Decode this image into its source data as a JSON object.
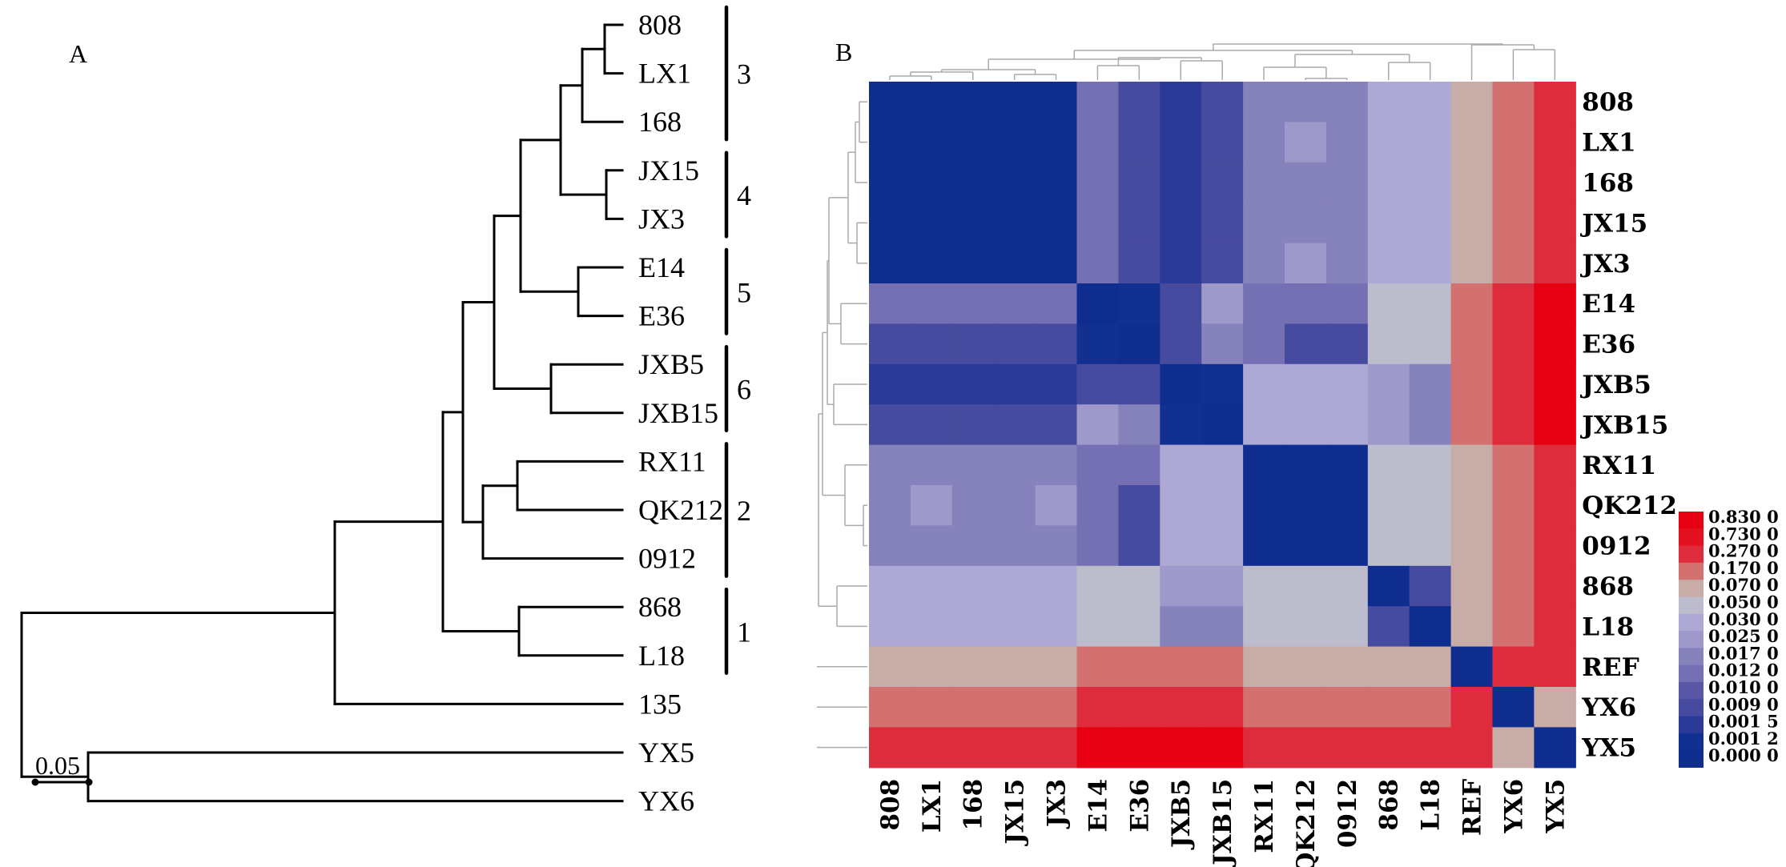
{
  "panel_a": {
    "label": "A",
    "taxa": [
      "808",
      "LX1",
      "168",
      "JX15",
      "JX3",
      "E14",
      "E36",
      "JXB5",
      "JXB15",
      "RX11",
      "QK212",
      "0912",
      "868",
      "L18",
      "135",
      "YX5",
      "YX6"
    ],
    "scale_bar": {
      "label": "0.05",
      "value": 0.05
    },
    "clusters": [
      {
        "label": "3",
        "members": [
          "808",
          "LX1",
          "168"
        ]
      },
      {
        "label": "4",
        "members": [
          "JX15",
          "JX3"
        ]
      },
      {
        "label": "5",
        "members": [
          "E14",
          "E36"
        ]
      },
      {
        "label": "6",
        "members": [
          "JXB5",
          "JXB15"
        ]
      },
      {
        "label": "2",
        "members": [
          "RX11",
          "QK212",
          "0912"
        ]
      },
      {
        "label": "1",
        "members": [
          "868",
          "L18"
        ]
      }
    ],
    "newick": "((((((((808,LX1),168),(JX15,JX3)),(E14,E36)),(JXB5,JXB15)),((RX11,QK212),0912)),(868,L18)),135),(YX5,YX6));"
  },
  "panel_b": {
    "label": "B",
    "labels": [
      "808",
      "LX1",
      "168",
      "JX15",
      "JX3",
      "E14",
      "E36",
      "JXB5",
      "JXB15",
      "RX11",
      "QK212",
      "0912",
      "868",
      "L18",
      "REF",
      "YX6",
      "YX5"
    ],
    "legend": {
      "labels": [
        "0.830 0",
        "0.730 0",
        "0.270 0",
        "0.170 0",
        "0.070 0",
        "0.050 0",
        "0.030 0",
        "0.025 0",
        "0.017 0",
        "0.012 0",
        "0.010 0",
        "0.009 0",
        "0.001 5",
        "0.001 2",
        "0.000 0"
      ],
      "colors": [
        "#e60012",
        "#e3101f",
        "#de2c3c",
        "#d37070",
        "#c8aca8",
        "#bdbccd",
        "#aea9d4",
        "#9e98cb",
        "#8682bc",
        "#7470b3",
        "#5856a5",
        "#474b9f",
        "#2b3a96",
        "#12308f",
        "#0f2d8f"
      ]
    }
  },
  "chart_data": {
    "type": "heatmap",
    "title": "",
    "rows": [
      "808",
      "LX1",
      "168",
      "JX15",
      "JX3",
      "E14",
      "E36",
      "JXB5",
      "JXB15",
      "RX11",
      "QK212",
      "0912",
      "868",
      "L18",
      "REF",
      "YX6",
      "YX5"
    ],
    "columns": [
      "808",
      "LX1",
      "168",
      "JX15",
      "JX3",
      "E14",
      "E36",
      "JXB5",
      "JXB15",
      "RX11",
      "QK212",
      "0912",
      "868",
      "L18",
      "REF",
      "YX6",
      "YX5"
    ],
    "scale_breaks": [
      0.0,
      0.0012,
      0.0015,
      0.009,
      0.01,
      0.012,
      0.017,
      0.025,
      0.03,
      0.05,
      0.07,
      0.17,
      0.27,
      0.73,
      0.83
    ],
    "values": [
      [
        0.0,
        0.0,
        0.0,
        0.0,
        0.0,
        0.012,
        0.009,
        0.0015,
        0.009,
        0.017,
        0.017,
        0.017,
        0.03,
        0.03,
        0.07,
        0.17,
        0.27
      ],
      [
        0.0,
        0.0,
        0.0,
        0.0,
        0.0,
        0.012,
        0.009,
        0.0015,
        0.009,
        0.017,
        0.025,
        0.017,
        0.03,
        0.03,
        0.07,
        0.17,
        0.27
      ],
      [
        0.0,
        0.0,
        0.0,
        0.0,
        0.0,
        0.012,
        0.009,
        0.0015,
        0.009,
        0.017,
        0.017,
        0.017,
        0.03,
        0.03,
        0.07,
        0.17,
        0.27
      ],
      [
        0.0,
        0.0,
        0.0,
        0.0,
        0.0,
        0.012,
        0.009,
        0.0015,
        0.009,
        0.017,
        0.017,
        0.017,
        0.03,
        0.03,
        0.07,
        0.17,
        0.27
      ],
      [
        0.0,
        0.0,
        0.0,
        0.0,
        0.0,
        0.012,
        0.009,
        0.0015,
        0.009,
        0.017,
        0.025,
        0.017,
        0.03,
        0.03,
        0.07,
        0.17,
        0.27
      ],
      [
        0.012,
        0.012,
        0.012,
        0.012,
        0.012,
        0.0,
        0.0012,
        0.009,
        0.025,
        0.012,
        0.012,
        0.012,
        0.05,
        0.05,
        0.17,
        0.27,
        0.83
      ],
      [
        0.009,
        0.009,
        0.009,
        0.009,
        0.009,
        0.0012,
        0.0,
        0.009,
        0.017,
        0.012,
        0.009,
        0.009,
        0.05,
        0.05,
        0.17,
        0.27,
        0.83
      ],
      [
        0.0015,
        0.0015,
        0.0015,
        0.0015,
        0.0015,
        0.009,
        0.009,
        0.0,
        0.0012,
        0.03,
        0.03,
        0.03,
        0.025,
        0.017,
        0.17,
        0.27,
        0.83
      ],
      [
        0.009,
        0.009,
        0.009,
        0.009,
        0.009,
        0.025,
        0.017,
        0.0012,
        0.0,
        0.03,
        0.03,
        0.03,
        0.025,
        0.017,
        0.17,
        0.27,
        0.83
      ],
      [
        0.017,
        0.017,
        0.017,
        0.017,
        0.017,
        0.012,
        0.012,
        0.03,
        0.03,
        0.0,
        0.0,
        0.0,
        0.05,
        0.05,
        0.07,
        0.17,
        0.27
      ],
      [
        0.017,
        0.025,
        0.017,
        0.017,
        0.025,
        0.012,
        0.009,
        0.03,
        0.03,
        0.0,
        0.0,
        0.0,
        0.05,
        0.05,
        0.07,
        0.17,
        0.27
      ],
      [
        0.017,
        0.017,
        0.017,
        0.017,
        0.017,
        0.012,
        0.009,
        0.03,
        0.03,
        0.0,
        0.0,
        0.0,
        0.05,
        0.05,
        0.07,
        0.17,
        0.27
      ],
      [
        0.03,
        0.03,
        0.03,
        0.03,
        0.03,
        0.05,
        0.05,
        0.025,
        0.025,
        0.05,
        0.05,
        0.05,
        0.0,
        0.009,
        0.07,
        0.17,
        0.27
      ],
      [
        0.03,
        0.03,
        0.03,
        0.03,
        0.03,
        0.05,
        0.05,
        0.017,
        0.017,
        0.05,
        0.05,
        0.05,
        0.009,
        0.0,
        0.07,
        0.17,
        0.27
      ],
      [
        0.07,
        0.07,
        0.07,
        0.07,
        0.07,
        0.17,
        0.17,
        0.17,
        0.17,
        0.07,
        0.07,
        0.07,
        0.07,
        0.07,
        0.0,
        0.27,
        0.27
      ],
      [
        0.17,
        0.17,
        0.17,
        0.17,
        0.17,
        0.27,
        0.27,
        0.27,
        0.27,
        0.17,
        0.17,
        0.17,
        0.17,
        0.17,
        0.27,
        0.0,
        0.07
      ],
      [
        0.27,
        0.27,
        0.27,
        0.27,
        0.27,
        0.83,
        0.83,
        0.83,
        0.83,
        0.27,
        0.27,
        0.27,
        0.27,
        0.27,
        0.27,
        0.07,
        0.0
      ]
    ],
    "legend_placement": "right",
    "row_labels_side": "right",
    "column_labels_side": "bottom",
    "row_dendrogram": "left",
    "column_dendrogram": "top"
  }
}
